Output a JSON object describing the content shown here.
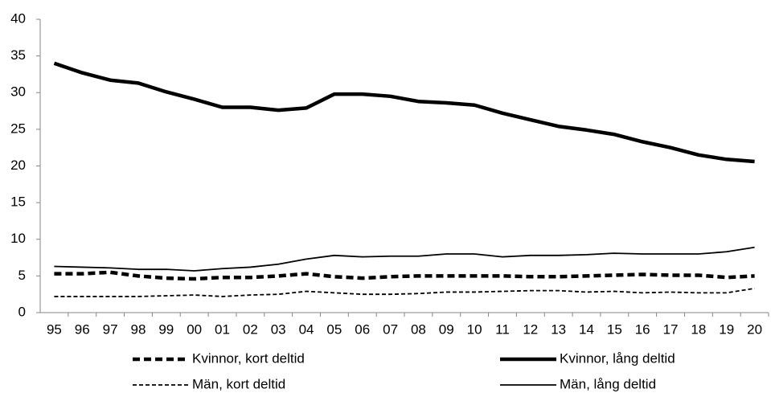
{
  "chart_data": {
    "type": "line",
    "categories": [
      "95",
      "96",
      "97",
      "98",
      "99",
      "00",
      "01",
      "02",
      "03",
      "04",
      "05",
      "06",
      "07",
      "08",
      "09",
      "10",
      "11",
      "12",
      "13",
      "14",
      "15",
      "16",
      "17",
      "18",
      "19",
      "20"
    ],
    "series": [
      {
        "name": "Kvinnor, kort deltid",
        "color": "#000000",
        "style": "dashed",
        "width": 4.5,
        "values": [
          5.3,
          5.3,
          5.5,
          5.0,
          4.7,
          4.6,
          4.8,
          4.8,
          5.0,
          5.3,
          4.9,
          4.7,
          4.9,
          5.0,
          5.0,
          5.0,
          5.0,
          4.9,
          4.9,
          5.0,
          5.1,
          5.2,
          5.1,
          5.1,
          4.8,
          5.0
        ]
      },
      {
        "name": "Kvinnor, lång deltid",
        "color": "#000000",
        "style": "solid",
        "width": 4.5,
        "values": [
          34.0,
          32.7,
          31.7,
          31.3,
          30.1,
          29.1,
          28.0,
          28.0,
          27.6,
          27.9,
          29.8,
          29.8,
          29.5,
          28.8,
          28.6,
          28.3,
          27.2,
          26.3,
          25.4,
          24.9,
          24.3,
          23.3,
          22.5,
          21.5,
          20.9,
          20.6
        ]
      },
      {
        "name": "Män, kort deltid",
        "color": "#000000",
        "style": "dashed",
        "width": 1.8,
        "values": [
          2.2,
          2.2,
          2.2,
          2.2,
          2.3,
          2.4,
          2.2,
          2.4,
          2.5,
          2.9,
          2.7,
          2.5,
          2.5,
          2.6,
          2.8,
          2.8,
          2.9,
          3.0,
          3.0,
          2.8,
          2.9,
          2.7,
          2.8,
          2.7,
          2.7,
          3.3
        ]
      },
      {
        "name": "Män, lång deltid",
        "color": "#000000",
        "style": "solid",
        "width": 1.8,
        "values": [
          6.3,
          6.2,
          6.1,
          5.9,
          5.9,
          5.7,
          6.0,
          6.2,
          6.6,
          7.3,
          7.8,
          7.6,
          7.7,
          7.7,
          8.0,
          8.0,
          7.6,
          7.8,
          7.8,
          7.9,
          8.1,
          8.0,
          8.0,
          8.0,
          8.3,
          8.9
        ]
      }
    ],
    "ylim": [
      0,
      40
    ],
    "yticks": [
      0,
      5,
      10,
      15,
      20,
      25,
      30,
      35,
      40
    ],
    "grid": false
  }
}
